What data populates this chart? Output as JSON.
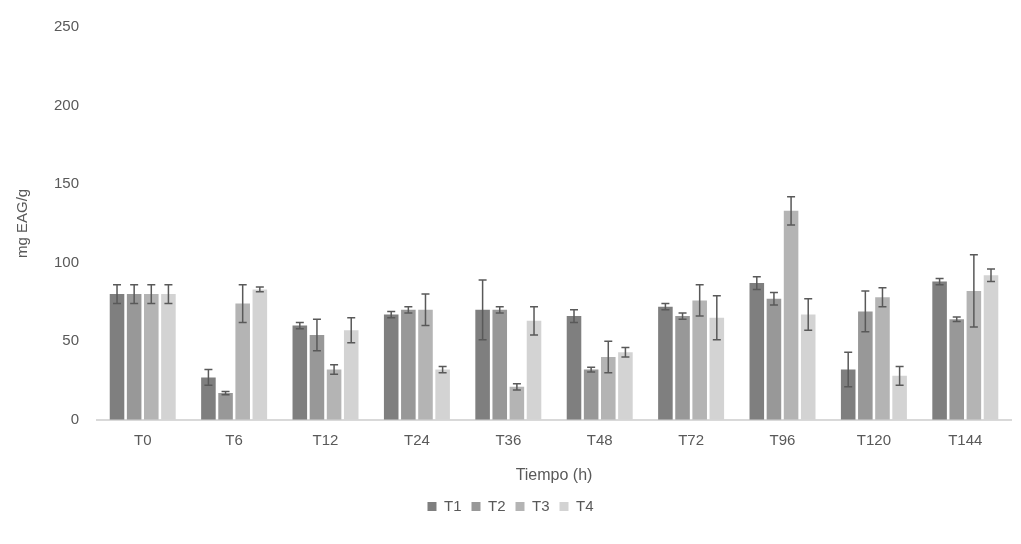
{
  "chart_data": {
    "type": "bar",
    "xlabel": "Tiempo (h)",
    "ylabel": "mg EAG/g",
    "categories": [
      "T0",
      "T6",
      "T12",
      "T24",
      "T36",
      "T48",
      "T72",
      "T96",
      "T120",
      "T144"
    ],
    "series": [
      {
        "name": "T1",
        "color": "#7f7f7f",
        "values": [
          80,
          27,
          60,
          67,
          70,
          66,
          72,
          87,
          32,
          88
        ],
        "errors": [
          6,
          5,
          2,
          2,
          19,
          4,
          2,
          4,
          11,
          2
        ]
      },
      {
        "name": "T2",
        "color": "#989898",
        "values": [
          80,
          17,
          54,
          70,
          70,
          32,
          66,
          77,
          69,
          64
        ],
        "errors": [
          6,
          1,
          10,
          2,
          2,
          1.5,
          2,
          4,
          13,
          1.5
        ]
      },
      {
        "name": "T3",
        "color": "#b4b4b4",
        "values": [
          80,
          74,
          32,
          70,
          21,
          40,
          76,
          133,
          78,
          82
        ],
        "errors": [
          6,
          12,
          3,
          10,
          2,
          10,
          10,
          9,
          6,
          23
        ]
      },
      {
        "name": "T4",
        "color": "#d3d3d3",
        "values": [
          80,
          83,
          57,
          32,
          63,
          43,
          65,
          67,
          28,
          92
        ],
        "errors": [
          6,
          1.5,
          8,
          2,
          9,
          3,
          14,
          10,
          6,
          4
        ]
      }
    ],
    "ylim": [
      0,
      250
    ],
    "yticks": [
      0,
      50,
      100,
      150,
      200,
      250
    ],
    "grid": false,
    "legend": "bottom"
  }
}
